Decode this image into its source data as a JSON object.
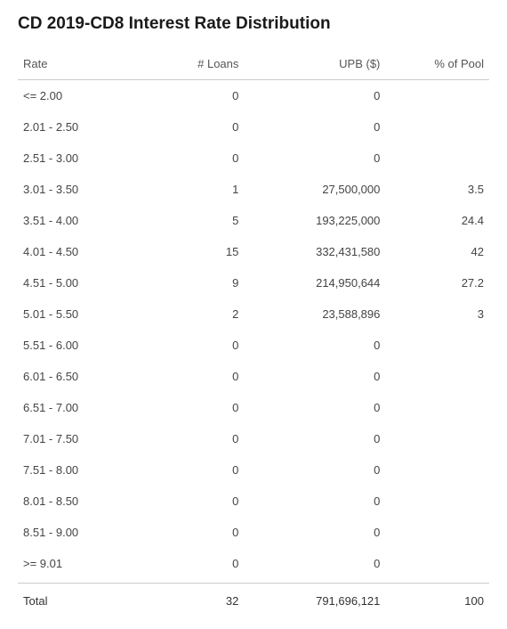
{
  "title": "CD 2019-CD8 Interest Rate Distribution",
  "columns": {
    "rate": "Rate",
    "loans": "# Loans",
    "upb": "UPB ($)",
    "pct": "% of Pool"
  },
  "rows": [
    {
      "rate": "<= 2.00",
      "loans": "0",
      "upb": "0",
      "pct": ""
    },
    {
      "rate": "2.01 - 2.50",
      "loans": "0",
      "upb": "0",
      "pct": ""
    },
    {
      "rate": "2.51 - 3.00",
      "loans": "0",
      "upb": "0",
      "pct": ""
    },
    {
      "rate": "3.01 - 3.50",
      "loans": "1",
      "upb": "27,500,000",
      "pct": "3.5"
    },
    {
      "rate": "3.51 - 4.00",
      "loans": "5",
      "upb": "193,225,000",
      "pct": "24.4"
    },
    {
      "rate": "4.01 - 4.50",
      "loans": "15",
      "upb": "332,431,580",
      "pct": "42"
    },
    {
      "rate": "4.51 - 5.00",
      "loans": "9",
      "upb": "214,950,644",
      "pct": "27.2"
    },
    {
      "rate": "5.01 - 5.50",
      "loans": "2",
      "upb": "23,588,896",
      "pct": "3"
    },
    {
      "rate": "5.51 - 6.00",
      "loans": "0",
      "upb": "0",
      "pct": ""
    },
    {
      "rate": "6.01 - 6.50",
      "loans": "0",
      "upb": "0",
      "pct": ""
    },
    {
      "rate": "6.51 - 7.00",
      "loans": "0",
      "upb": "0",
      "pct": ""
    },
    {
      "rate": "7.01 - 7.50",
      "loans": "0",
      "upb": "0",
      "pct": ""
    },
    {
      "rate": "7.51 - 8.00",
      "loans": "0",
      "upb": "0",
      "pct": ""
    },
    {
      "rate": "8.01 - 8.50",
      "loans": "0",
      "upb": "0",
      "pct": ""
    },
    {
      "rate": "8.51 - 9.00",
      "loans": "0",
      "upb": "0",
      "pct": ""
    },
    {
      "rate": ">= 9.01",
      "loans": "0",
      "upb": "0",
      "pct": ""
    }
  ],
  "total": {
    "label": "Total",
    "loans": "32",
    "upb": "791,696,121",
    "pct": "100"
  },
  "style": {
    "type": "table",
    "background_color": "#ffffff",
    "text_color": "#444444",
    "title_color": "#1a1a1a",
    "border_color": "#cccccc",
    "title_fontsize": 19,
    "body_fontsize": 13,
    "column_widths_pct": [
      26,
      22,
      30,
      22
    ],
    "column_align": [
      "left",
      "right",
      "right",
      "right"
    ]
  }
}
